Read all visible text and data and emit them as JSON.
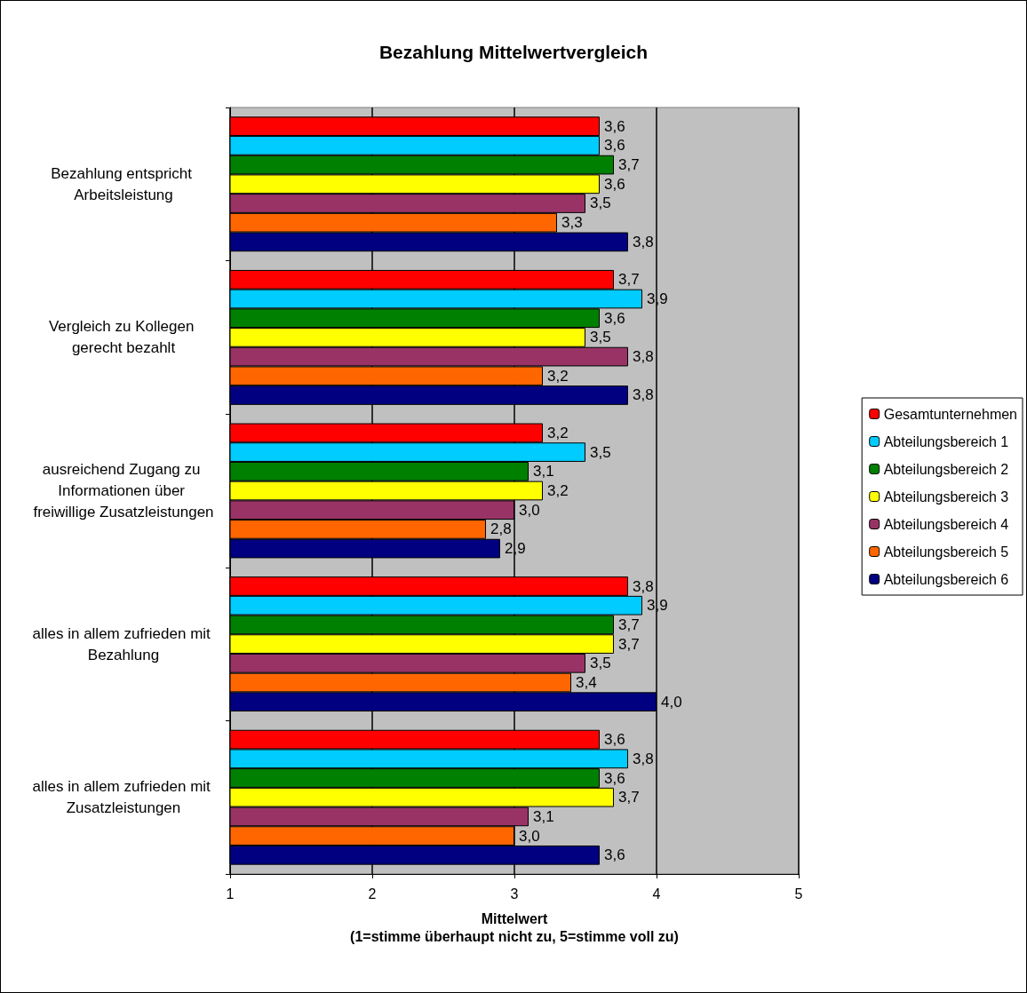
{
  "chart_data": {
    "type": "bar",
    "orientation": "horizontal",
    "title": "Bezahlung Mittelwertvergleich",
    "xlabel": "Mittelwert\n(1=stimme überhaupt nicht zu, 5=stimme voll zu)",
    "categories": [
      "Bezahlung entspricht Arbeitsleistung",
      "Vergleich zu Kollegen gerecht bezahlt",
      "ausreichend Zugang zu Informationen über freiwillige Zusatzleistungen",
      "alles in allem zufrieden mit Bezahlung",
      "alles in allem zufrieden mit Zusatzleistungen"
    ],
    "series": [
      {
        "name": "Gesamtunternehmen",
        "color": "#ff0000",
        "values": [
          3.6,
          3.7,
          3.2,
          3.8,
          3.6
        ],
        "value_labels": [
          "3,6",
          "3,7",
          "3,2",
          "3,8",
          "3,6"
        ]
      },
      {
        "name": "Abteilungsbereich 1",
        "color": "#00ccff",
        "values": [
          3.6,
          3.9,
          3.5,
          3.9,
          3.8
        ],
        "value_labels": [
          "3,6",
          "3,9",
          "3,5",
          "3,9",
          "3,8"
        ]
      },
      {
        "name": "Abteilungsbereich 2",
        "color": "#008000",
        "values": [
          3.7,
          3.6,
          3.1,
          3.7,
          3.6
        ],
        "value_labels": [
          "3,7",
          "3,6",
          "3,1",
          "3,7",
          "3,6"
        ]
      },
      {
        "name": "Abteilungsbereich 3",
        "color": "#ffff00",
        "values": [
          3.6,
          3.5,
          3.2,
          3.7,
          3.7
        ],
        "value_labels": [
          "3,6",
          "3,5",
          "3,2",
          "3,7",
          "3,7"
        ]
      },
      {
        "name": "Abteilungsbereich 4",
        "color": "#993366",
        "values": [
          3.5,
          3.8,
          3.0,
          3.5,
          3.1
        ],
        "value_labels": [
          "3,5",
          "3,8",
          "3,0",
          "3,5",
          "3,1"
        ]
      },
      {
        "name": "Abteilungsbereich 5",
        "color": "#ff6600",
        "values": [
          3.3,
          3.2,
          2.8,
          3.4,
          3.0
        ],
        "value_labels": [
          "3,3",
          "3,2",
          "2,8",
          "3,4",
          "3,0"
        ]
      },
      {
        "name": "Abteilungsbereich 6",
        "color": "#000080",
        "values": [
          3.8,
          3.8,
          2.9,
          4.0,
          3.6
        ],
        "value_labels": [
          "3,8",
          "3,8",
          "2,9",
          "4,0",
          "3,6"
        ]
      }
    ],
    "xlim": [
      1,
      5
    ],
    "xticks": [
      1,
      2,
      3,
      4,
      5
    ],
    "grid": "x",
    "legend": "right"
  }
}
